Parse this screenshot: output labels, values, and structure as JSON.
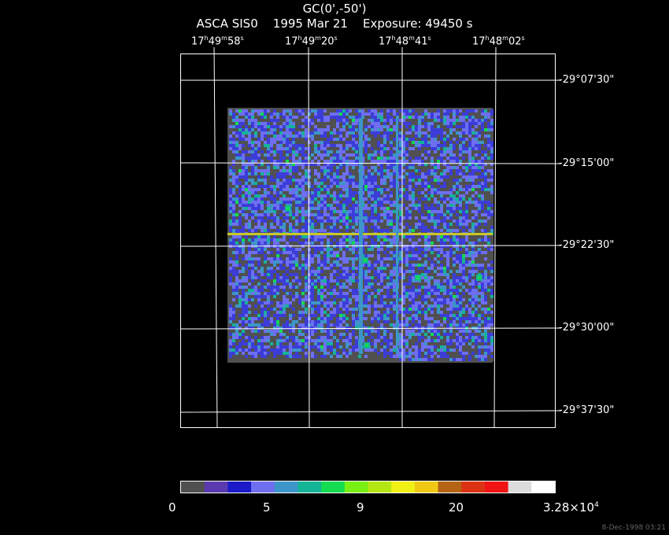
{
  "header": {
    "target": "GC(0',-50')",
    "instrument_line": "ASCA SIS0    1995 Mar 21    Exposure: 49450 s"
  },
  "ra_labels": [
    {
      "h": "17",
      "m": "49",
      "s": "58"
    },
    {
      "h": "17",
      "m": "49",
      "s": "20"
    },
    {
      "h": "17",
      "m": "48",
      "s": "41"
    },
    {
      "h": "17",
      "m": "48",
      "s": "02"
    }
  ],
  "dec_labels": [
    "-29°07'30\"",
    "-29°15'00\"",
    "-29°22'30\"",
    "-29°30'00\"",
    "-29°37'30\""
  ],
  "colorbar": {
    "colors": [
      "#505050",
      "#5a3aae",
      "#1a1ac8",
      "#6e6ef0",
      "#3c96c8",
      "#14b496",
      "#14dc50",
      "#78f014",
      "#b4e614",
      "#f0f014",
      "#f0c814",
      "#b46414",
      "#dc3214",
      "#f01414",
      "#dcdcdc",
      "#ffffff"
    ],
    "tick_labels": [
      "0",
      "5",
      "9",
      "20",
      "3.28×10"
    ],
    "tick_exponent": "4"
  },
  "image_palette": {
    "background": "#505050",
    "low": "#5a3aae",
    "mid": "#3c3cd8",
    "blue_light": "#6e6ef0",
    "cyan": "#3c96c8",
    "teal": "#14b496",
    "green": "#14dc50"
  },
  "footer": {
    "timestamp": "8-Dec-1998 03:21"
  }
}
